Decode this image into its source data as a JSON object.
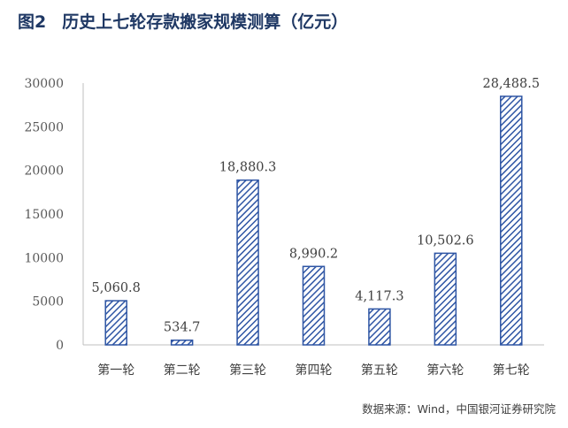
{
  "figure": {
    "number": "图2",
    "title": "历史上七轮存款搬家规模测算（亿元）",
    "source": "数据来源：Wind，中国银河证券研究院"
  },
  "chart_data": {
    "type": "bar",
    "categories": [
      "第一轮",
      "第二轮",
      "第三轮",
      "第四轮",
      "第五轮",
      "第六轮",
      "第七轮"
    ],
    "values": [
      5060.8,
      534.7,
      18880.3,
      8990.2,
      4117.3,
      10502.6,
      28488.5
    ],
    "data_labels": [
      "5,060.8",
      "534.7",
      "18,880.3",
      "8,990.2",
      "4,117.3",
      "10,502.6",
      "28,488.5"
    ],
    "yticks": [
      "0",
      "5000",
      "10000",
      "15000",
      "20000",
      "25000",
      "30000"
    ],
    "ylim": [
      0,
      30000
    ],
    "title": "历史上七轮存款搬家规模测算（亿元）",
    "xlabel": "",
    "ylabel": "",
    "grid": false,
    "legend": "none",
    "colors": {
      "bar_stroke": "#2e55a4",
      "bar_hatch": "#2e55a4",
      "axis": "#bfbfbf"
    }
  }
}
